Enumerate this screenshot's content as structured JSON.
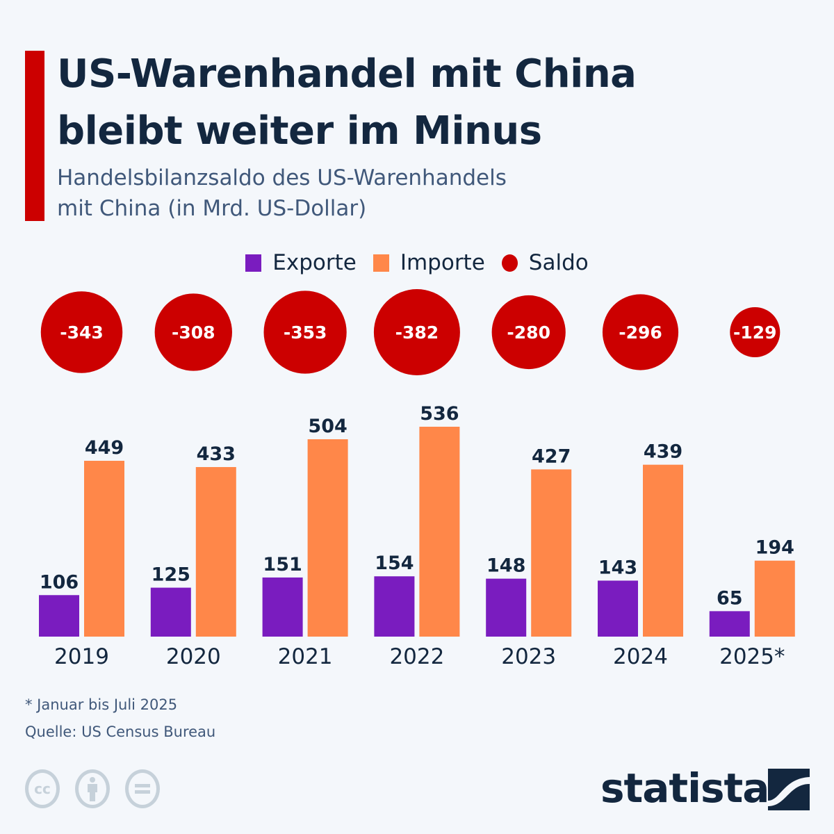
{
  "header": {
    "title_line1": "US-Warenhandel mit China",
    "title_line2": "bleibt weiter im Minus",
    "subtitle_line1": "Handelsbilanzsaldo des US-Warenhandels",
    "subtitle_line2": "mit China (in Mrd. US-Dollar)"
  },
  "colors": {
    "exporte": "#7a1cbf",
    "importe": "#ff8749",
    "saldo": "#cc0000",
    "text": "#13273f",
    "accent_bar": "#cc0000"
  },
  "chart_data": {
    "type": "bar",
    "title": "US-Warenhandel mit China bleibt weiter im Minus",
    "subtitle": "Handelsbilanzsaldo des US-Warenhandels mit China (in Mrd. US-Dollar)",
    "xlabel": "",
    "ylabel": "",
    "categories": [
      "2019",
      "2020",
      "2021",
      "2022",
      "2023",
      "2024",
      "2025*"
    ],
    "series": [
      {
        "name": "Exporte",
        "values": [
          106,
          125,
          151,
          154,
          148,
          143,
          65
        ]
      },
      {
        "name": "Importe",
        "values": [
          449,
          433,
          504,
          536,
          427,
          439,
          194
        ]
      },
      {
        "name": "Saldo",
        "values": [
          -343,
          -308,
          -353,
          -382,
          -280,
          -296,
          -129
        ],
        "display": "bubble"
      }
    ],
    "ylim": [
      0,
      536
    ],
    "grid": false,
    "legend": "top-center"
  },
  "legend": [
    {
      "label": "Exporte",
      "shape": "square"
    },
    {
      "label": "Importe",
      "shape": "square"
    },
    {
      "label": "Saldo",
      "shape": "circle"
    }
  ],
  "footer": {
    "footnote": "* Januar bis Juli 2025",
    "source": "Quelle: US Census Bureau",
    "license_icons": [
      "cc-icon",
      "attribution-icon",
      "no-derivatives-icon"
    ],
    "logo_text": "statista"
  }
}
